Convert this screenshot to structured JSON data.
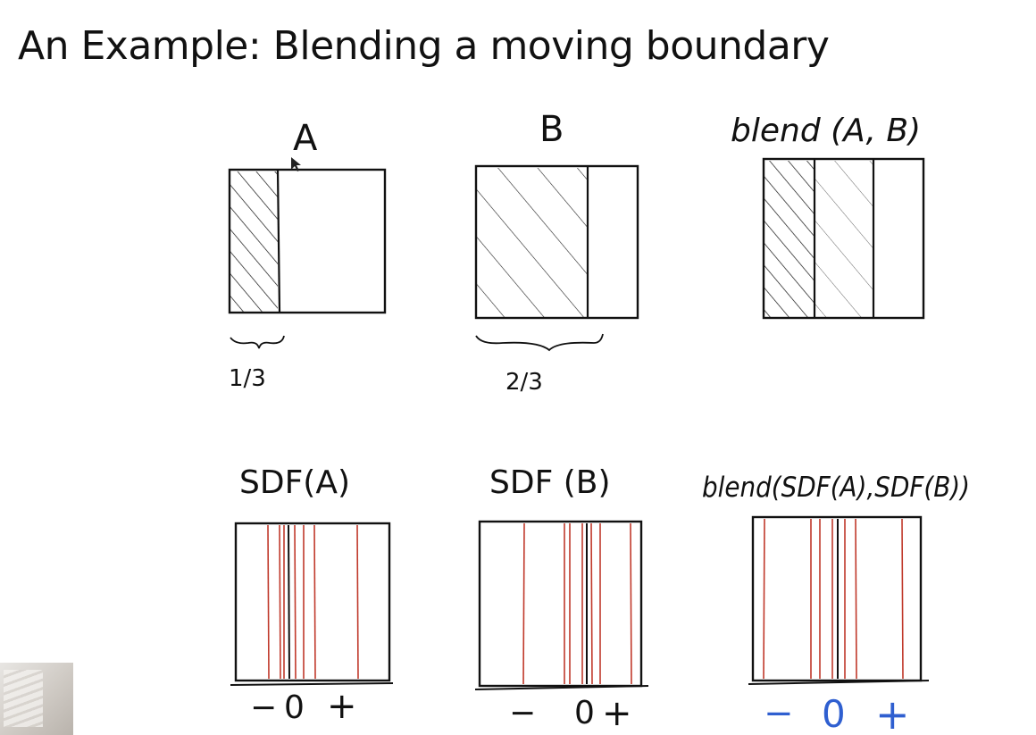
{
  "slide": {
    "title": "An Example: Blending a moving boundary"
  },
  "top_row": {
    "a": {
      "label": "A",
      "span_label": "1/3"
    },
    "b": {
      "label": "B",
      "span_label": "2/3"
    },
    "blend": {
      "label": "blend (A, B)"
    }
  },
  "bottom_row": {
    "sdf_a": {
      "label": "SDF(A)",
      "minus": "−",
      "zero": "0",
      "plus": "+"
    },
    "sdf_b": {
      "label": "SDF (B)",
      "minus": "−",
      "zero": "0",
      "plus": "+"
    },
    "blend_sdf": {
      "label": "blend(SDF(A),SDF(B))",
      "minus": "−",
      "zero": "0",
      "plus": "+"
    }
  },
  "colors": {
    "ink": "#111111",
    "contour": "#c0392b",
    "blue_ink": "#2f5fd0"
  }
}
